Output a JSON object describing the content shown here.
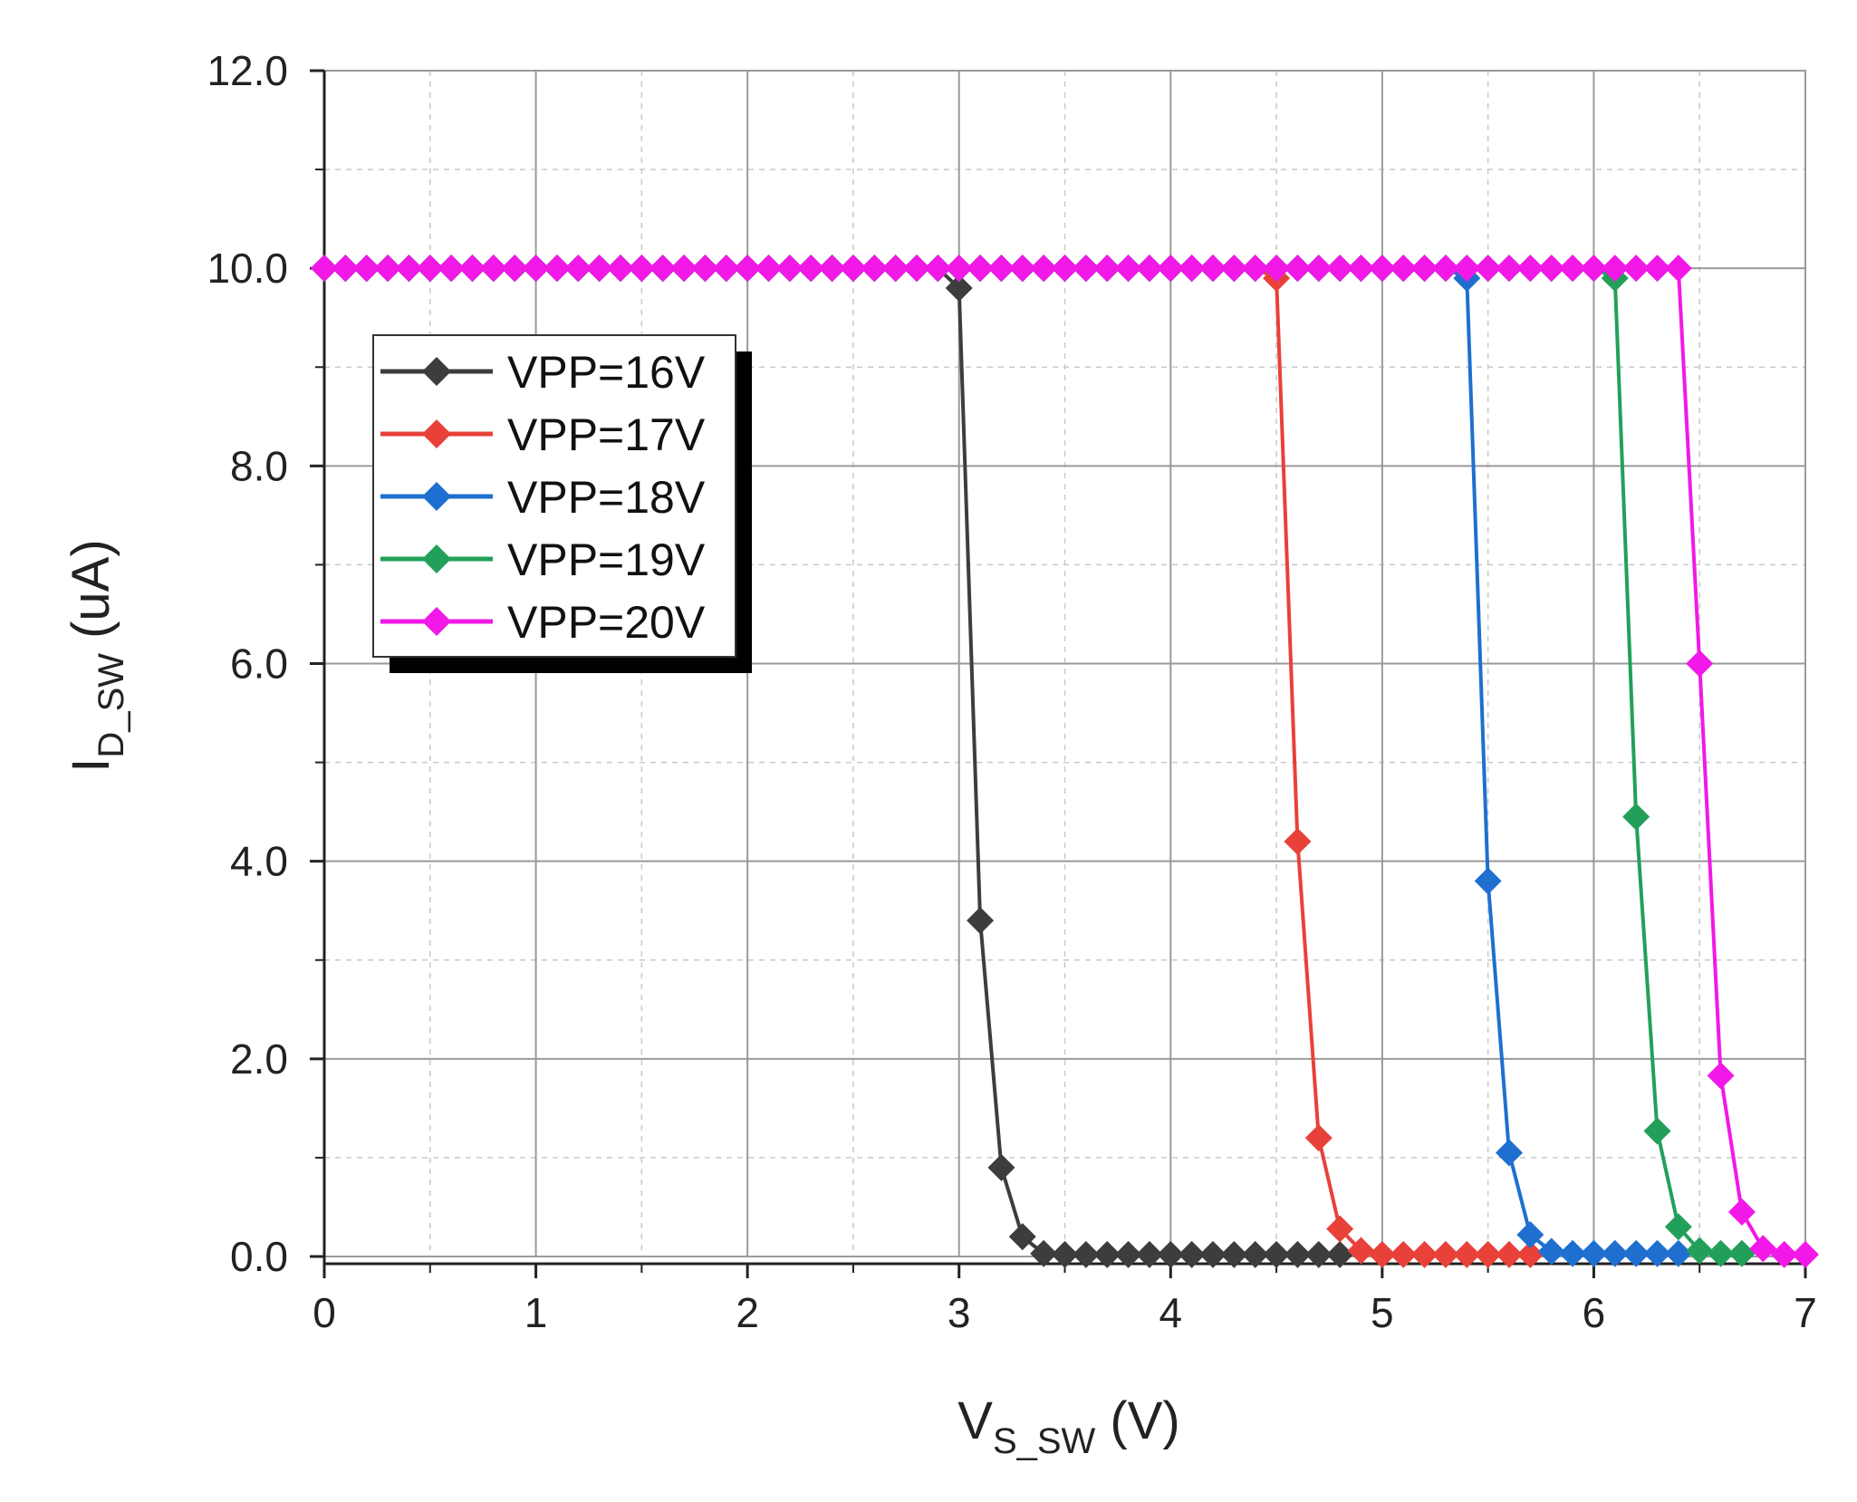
{
  "chart_data": {
    "type": "line",
    "title": "",
    "xlabel": {
      "main": "V",
      "sub": "S_SW",
      "unit": " (V)"
    },
    "ylabel": {
      "main": "I",
      "sub": "D_SW",
      "unit": " (uA)"
    },
    "xlim": [
      0,
      7
    ],
    "ylim": [
      0,
      12
    ],
    "xticks": [
      0,
      1,
      2,
      3,
      4,
      5,
      6,
      7
    ],
    "xtick_labels": [
      "0",
      "1",
      "2",
      "3",
      "4",
      "5",
      "6",
      "7"
    ],
    "yticks": [
      0,
      2,
      4,
      6,
      8,
      10,
      12
    ],
    "ytick_labels": [
      "0.0",
      "2.0",
      "4.0",
      "6.0",
      "8.0",
      "10.0",
      "12.0"
    ],
    "grid": true,
    "legend_position": "upper-left",
    "x_step": 0.1,
    "series": [
      {
        "name": "VPP=16V",
        "color": "#3d3d3d",
        "values": [
          10,
          10,
          10,
          10,
          10,
          10,
          10,
          10,
          10,
          10,
          10,
          10,
          10,
          10,
          10,
          10,
          10,
          10,
          10,
          10,
          10,
          10,
          10,
          10,
          10,
          10,
          10,
          10,
          10,
          10,
          9.8,
          3.4,
          0.9,
          0.2,
          0.03,
          0.02,
          0.02,
          0.02,
          0.02,
          0.02,
          0.02,
          0.02,
          0.02,
          0.02,
          0.02,
          0.02,
          0.02,
          0.02,
          0.02
        ]
      },
      {
        "name": "VPP=17V",
        "color": "#e8413a",
        "values": [
          10,
          10,
          10,
          10,
          10,
          10,
          10,
          10,
          10,
          10,
          10,
          10,
          10,
          10,
          10,
          10,
          10,
          10,
          10,
          10,
          10,
          10,
          10,
          10,
          10,
          10,
          10,
          10,
          10,
          10,
          10,
          10,
          10,
          10,
          10,
          10,
          10,
          10,
          10,
          10,
          10,
          10,
          10,
          10,
          10,
          9.9,
          4.2,
          1.2,
          0.28,
          0.06,
          0.02,
          0.02,
          0.02,
          0.02,
          0.02,
          0.02,
          0.02,
          0.02
        ]
      },
      {
        "name": "VPP=18V",
        "color": "#1f6fd1",
        "values": [
          10,
          10,
          10,
          10,
          10,
          10,
          10,
          10,
          10,
          10,
          10,
          10,
          10,
          10,
          10,
          10,
          10,
          10,
          10,
          10,
          10,
          10,
          10,
          10,
          10,
          10,
          10,
          10,
          10,
          10,
          10,
          10,
          10,
          10,
          10,
          10,
          10,
          10,
          10,
          10,
          10,
          10,
          10,
          10,
          10,
          10,
          10,
          10,
          10,
          10,
          10,
          10,
          10,
          10,
          9.9,
          3.8,
          1.05,
          0.22,
          0.05,
          0.03,
          0.03,
          0.03,
          0.03,
          0.03,
          0.03
        ]
      },
      {
        "name": "VPP=19V",
        "color": "#22a05a",
        "values": [
          10,
          10,
          10,
          10,
          10,
          10,
          10,
          10,
          10,
          10,
          10,
          10,
          10,
          10,
          10,
          10,
          10,
          10,
          10,
          10,
          10,
          10,
          10,
          10,
          10,
          10,
          10,
          10,
          10,
          10,
          10,
          10,
          10,
          10,
          10,
          10,
          10,
          10,
          10,
          10,
          10,
          10,
          10,
          10,
          10,
          10,
          10,
          10,
          10,
          10,
          10,
          10,
          10,
          10,
          10,
          10,
          10,
          10,
          10,
          10,
          10,
          9.9,
          4.45,
          1.27,
          0.3,
          0.06,
          0.03,
          0.03
        ]
      },
      {
        "name": "VPP=20V",
        "color": "#f218e8",
        "values": [
          10,
          10,
          10,
          10,
          10,
          10,
          10,
          10,
          10,
          10,
          10,
          10,
          10,
          10,
          10,
          10,
          10,
          10,
          10,
          10,
          10,
          10,
          10,
          10,
          10,
          10,
          10,
          10,
          10,
          10,
          10,
          10,
          10,
          10,
          10,
          10,
          10,
          10,
          10,
          10,
          10,
          10,
          10,
          10,
          10,
          10,
          10,
          10,
          10,
          10,
          10,
          10,
          10,
          10,
          10,
          10,
          10,
          10,
          10,
          10,
          10,
          10,
          10,
          10,
          10,
          6.0,
          1.83,
          0.45,
          0.08,
          0.02,
          0.02
        ]
      }
    ]
  }
}
